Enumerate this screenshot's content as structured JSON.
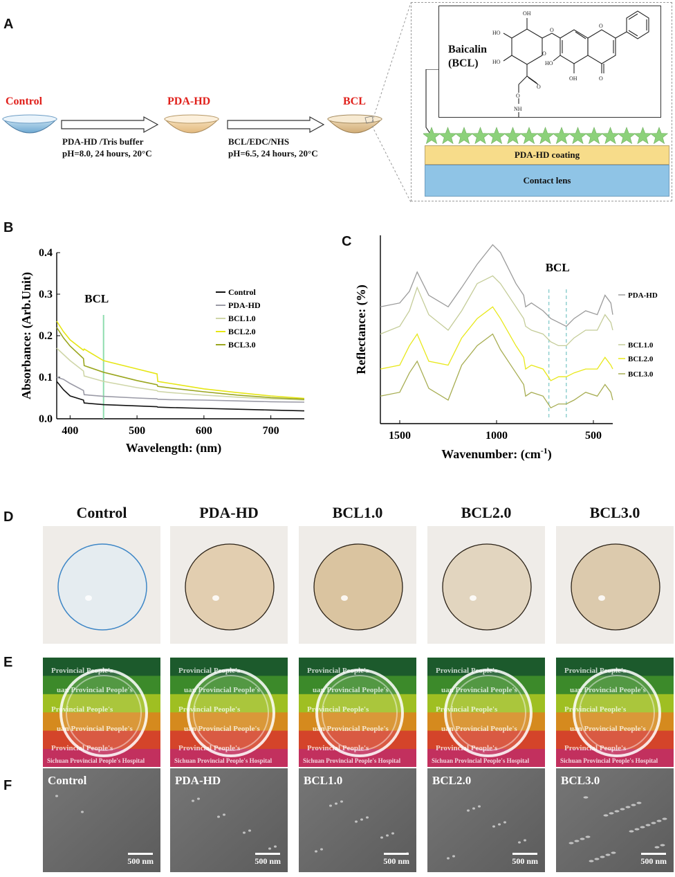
{
  "panels": {
    "a": "A",
    "b": "B",
    "c": "C",
    "d": "D",
    "e": "E",
    "f": "F"
  },
  "scheme": {
    "control_label": "Control",
    "pdahd_label": "PDA-HD",
    "bcl_label": "BCL",
    "step1_line1": "PDA-HD /Tris buffer",
    "step1_line2": "pH=8.0, 24 hours, 20°C",
    "step2_line1": "BCL/EDC/NHS",
    "step2_line2": "pH=6.5, 24 hours, 20°C",
    "label_color": "#e0201b",
    "inset": {
      "molecule_name_1": "Baicalin",
      "molecule_name_2": "(BCL)",
      "coating_label": "PDA-HD coating",
      "lens_label": "Contact lens",
      "coating_color": "#f7dc8a",
      "lens_color": "#8fc4e6",
      "star_color": "#8cd17a",
      "atoms": {
        "oh": "OH",
        "ho": "HO",
        "o": "O",
        "nh": "NH"
      }
    }
  },
  "chart_data": [
    {
      "type": "line",
      "panel": "B",
      "xlabel": "Wavelength: (nm)",
      "ylabel": "Absorbance: (Arb.Unit)",
      "xlim": [
        380,
        750
      ],
      "ylim": [
        0.0,
        0.4
      ],
      "xticks": [
        "400",
        "500",
        "600",
        "700"
      ],
      "yticks": [
        "0.0",
        "0.1",
        "0.2",
        "0.3",
        "0.4"
      ],
      "annotation": "BCL",
      "marker_x": 450,
      "x": [
        380,
        390,
        400,
        420,
        421,
        450,
        500,
        530,
        531,
        550,
        600,
        650,
        700,
        750
      ],
      "series": [
        {
          "name": "Control",
          "color": "#111111",
          "values": [
            0.09,
            0.07,
            0.055,
            0.045,
            0.038,
            0.034,
            0.031,
            0.029,
            0.028,
            0.027,
            0.025,
            0.023,
            0.021,
            0.019
          ]
        },
        {
          "name": "PDA-HD",
          "color": "#9a9aa6",
          "values": [
            0.1,
            0.095,
            0.085,
            0.068,
            0.058,
            0.054,
            0.05,
            0.048,
            0.047,
            0.046,
            0.045,
            0.043,
            0.041,
            0.04
          ]
        },
        {
          "name": "BCL1.0",
          "color": "#cfd6a8",
          "values": [
            0.17,
            0.155,
            0.14,
            0.115,
            0.103,
            0.09,
            0.075,
            0.068,
            0.066,
            0.063,
            0.057,
            0.052,
            0.048,
            0.045
          ]
        },
        {
          "name": "BCL2.0",
          "color": "#e6e614",
          "values": [
            0.235,
            0.21,
            0.19,
            0.165,
            0.168,
            0.14,
            0.12,
            0.108,
            0.09,
            0.085,
            0.072,
            0.063,
            0.055,
            0.049
          ]
        },
        {
          "name": "BCL3.0",
          "color": "#9aa61e",
          "values": [
            0.22,
            0.195,
            0.175,
            0.145,
            0.128,
            0.112,
            0.092,
            0.082,
            0.078,
            0.074,
            0.065,
            0.057,
            0.051,
            0.047
          ]
        }
      ]
    },
    {
      "type": "line",
      "panel": "C",
      "xlabel": "Wavenumber: (cm",
      "xlabel_sup": "-1",
      "xlabel_end": ")",
      "ylabel": "Reflectance: (%)",
      "xlim": [
        1600,
        400
      ],
      "xticks": [
        "1500",
        "1000",
        "500"
      ],
      "annotation": "BCL",
      "marker_x": [
        730,
        640
      ],
      "x": [
        1600,
        1500,
        1450,
        1410,
        1350,
        1250,
        1180,
        1100,
        1020,
        980,
        900,
        860,
        850,
        820,
        760,
        720,
        680,
        640,
        600,
        540,
        480,
        440,
        410,
        400
      ],
      "series": [
        {
          "name": "PDA-HD",
          "color": "#9a9a9a",
          "values": [
            8.4,
            8.5,
            8.8,
            9.3,
            8.7,
            8.4,
            8.9,
            9.5,
            10.0,
            9.8,
            9.0,
            8.7,
            8.4,
            8.5,
            8.3,
            8.1,
            8.0,
            7.9,
            8.1,
            8.3,
            8.2,
            8.7,
            8.5,
            8.2
          ]
        },
        {
          "name": "BCL1.0",
          "color": "#c4cc98",
          "values": [
            7.7,
            7.9,
            8.3,
            8.9,
            8.2,
            7.8,
            8.3,
            9.0,
            9.2,
            9.0,
            8.4,
            8.1,
            7.9,
            7.8,
            7.7,
            7.5,
            7.4,
            7.4,
            7.6,
            7.8,
            7.8,
            8.2,
            8.0,
            7.8
          ]
        },
        {
          "name": "BCL2.0",
          "color": "#e8e81a",
          "values": [
            6.8,
            6.9,
            7.4,
            7.7,
            7.0,
            6.9,
            7.6,
            8.1,
            8.4,
            8.1,
            7.4,
            7.1,
            6.8,
            6.9,
            6.8,
            6.5,
            6.6,
            6.6,
            6.7,
            6.8,
            6.8,
            7.1,
            6.9,
            6.8
          ]
        },
        {
          "name": "BCL3.0",
          "color": "#a7ad52",
          "values": [
            6.1,
            6.2,
            6.7,
            7.0,
            6.3,
            6.0,
            6.9,
            7.4,
            7.7,
            7.3,
            6.7,
            6.4,
            6.1,
            6.2,
            6.1,
            5.8,
            5.9,
            5.9,
            6.0,
            6.2,
            6.1,
            6.4,
            6.2,
            6.0
          ]
        }
      ]
    }
  ],
  "lens_photos": {
    "titles": [
      "Control",
      "PDA-HD",
      "BCL1.0",
      "BCL2.0",
      "BCL3.0"
    ]
  },
  "wells": {
    "text_1": "Provincial People's",
    "text_2": "Sichuan Provincial People's Hospital",
    "text_3": "uan Provincial People's"
  },
  "sem": {
    "labels": [
      "Control",
      "PDA-HD",
      "BCL1.0",
      "BCL2.0",
      "BCL3.0"
    ],
    "scale": "500 nm"
  }
}
